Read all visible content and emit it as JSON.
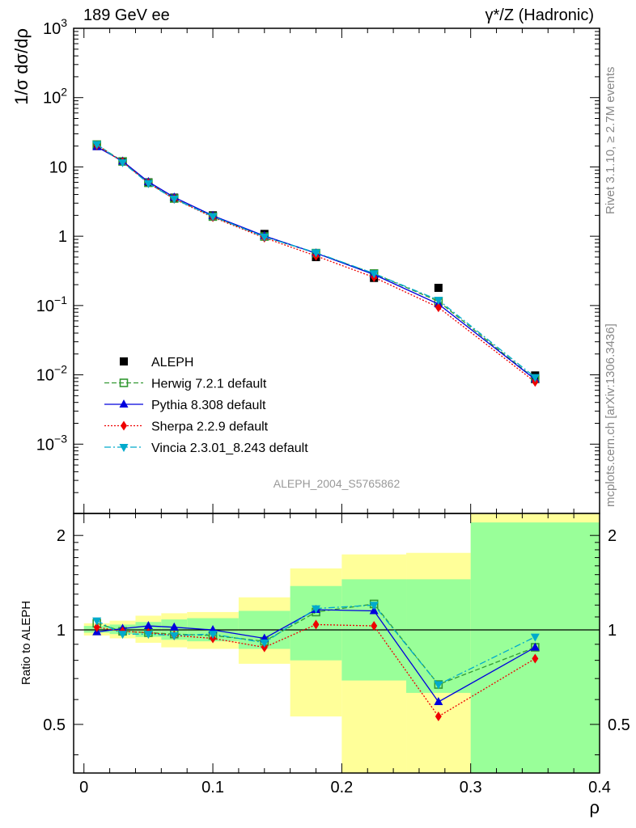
{
  "header": {
    "left": "189 GeV ee",
    "right": "γ*/Z (Hadronic)"
  },
  "side_labels": {
    "rivet": "Rivet 3.1.10, ≥ 2.7M events",
    "mcplots": "mcplots.cern.ch [arXiv:1306.3436]"
  },
  "watermark": "ALEPH_2004_S5765862",
  "chart_data": [
    {
      "id": "main",
      "type": "scatter",
      "ylabel": "1/σ dσ/dρ",
      "yscale": "log",
      "ylim": [
        0.0001,
        1000
      ],
      "xlim": [
        -0.008,
        0.4
      ],
      "ytick_labels": [
        {
          "value": 1000,
          "base": "10",
          "exp": "3"
        },
        {
          "value": 100,
          "base": "10",
          "exp": "2"
        },
        {
          "value": 10,
          "base": "10",
          "exp": ""
        },
        {
          "value": 1,
          "base": "1",
          "exp": ""
        },
        {
          "value": 0.1,
          "base": "10",
          "exp": "−1"
        },
        {
          "value": 0.01,
          "base": "10",
          "exp": "−2"
        },
        {
          "value": 0.001,
          "base": "10",
          "exp": "−3"
        }
      ],
      "x": [
        0.01,
        0.03,
        0.05,
        0.07,
        0.1,
        0.14,
        0.18,
        0.225,
        0.275,
        0.35
      ],
      "series": [
        {
          "name": "ALEPH",
          "color": "#000000",
          "marker": "square-filled",
          "line": "none",
          "values": [
            20,
            12,
            6,
            3.6,
            2.0,
            1.08,
            0.5,
            0.25,
            0.18,
            0.0098
          ]
        },
        {
          "name": "Herwig 7.2.1 default",
          "color": "#339933",
          "marker": "square-open",
          "line": "dashed",
          "values": [
            21,
            12,
            5.9,
            3.5,
            1.92,
            0.99,
            0.57,
            0.29,
            0.115,
            0.0087
          ]
        },
        {
          "name": "Pythia 8.308 default",
          "color": "#0000dd",
          "marker": "triangle-up",
          "line": "solid",
          "values": [
            19.5,
            12.1,
            6.1,
            3.65,
            1.98,
            1.01,
            0.57,
            0.28,
            0.105,
            0.0086
          ]
        },
        {
          "name": "Sherpa 2.2.9 default",
          "color": "#ee0000",
          "marker": "diamond",
          "line": "dotted",
          "values": [
            20.5,
            11.8,
            5.85,
            3.45,
            1.88,
            0.95,
            0.52,
            0.255,
            0.094,
            0.0079
          ]
        },
        {
          "name": "Vincia 2.3.01_8.243 default",
          "color": "#00aacc",
          "marker": "triangle-down",
          "line": "dashdot",
          "values": [
            21.2,
            11.6,
            5.8,
            3.45,
            1.93,
            0.98,
            0.58,
            0.29,
            0.12,
            0.0092
          ]
        }
      ]
    },
    {
      "id": "ratio",
      "type": "line",
      "ylabel": "Ratio to ALEPH",
      "yscale": "log",
      "ylim": [
        0.35,
        2.35
      ],
      "yticks": [
        0.5,
        1,
        2
      ],
      "xlabel": "ρ",
      "xticks": [
        0,
        0.1,
        0.2,
        0.3,
        0.4
      ],
      "xlim": [
        -0.008,
        0.4
      ],
      "bin_edges": [
        0,
        0.02,
        0.04,
        0.06,
        0.08,
        0.12,
        0.16,
        0.2,
        0.25,
        0.3,
        0.4
      ],
      "band_inner": [
        [
          0.98,
          1.03
        ],
        [
          0.97,
          1.04
        ],
        [
          0.95,
          1.06
        ],
        [
          0.93,
          1.08
        ],
        [
          0.92,
          1.09
        ],
        [
          0.87,
          1.15
        ],
        [
          0.8,
          1.38
        ],
        [
          0.69,
          1.45
        ],
        [
          0.63,
          1.45
        ],
        [
          0.35,
          2.2
        ]
      ],
      "band_outer": [
        [
          0.96,
          1.05
        ],
        [
          0.94,
          1.07
        ],
        [
          0.91,
          1.11
        ],
        [
          0.88,
          1.13
        ],
        [
          0.87,
          1.14
        ],
        [
          0.78,
          1.27
        ],
        [
          0.53,
          1.57
        ],
        [
          0.35,
          1.74
        ],
        [
          0.35,
          1.76
        ],
        [
          0.35,
          2.35
        ]
      ],
      "colors": {
        "inner": "#99ff99",
        "outer": "#ffff99"
      },
      "x": [
        0.01,
        0.03,
        0.05,
        0.07,
        0.1,
        0.14,
        0.18,
        0.225,
        0.275,
        0.35
      ],
      "series": [
        {
          "name": "Herwig 7.2.1 default",
          "color": "#339933",
          "marker": "square-open",
          "line": "dashed",
          "values": [
            1.05,
            0.99,
            0.98,
            0.97,
            0.96,
            0.92,
            1.14,
            1.21,
            0.67,
            0.88
          ]
        },
        {
          "name": "Pythia 8.308 default",
          "color": "#0000dd",
          "marker": "triangle-up",
          "line": "solid",
          "values": [
            0.985,
            1.01,
            1.03,
            1.02,
            1.0,
            0.94,
            1.16,
            1.15,
            0.59,
            0.88
          ]
        },
        {
          "name": "Sherpa 2.2.9 default",
          "color": "#ee0000",
          "marker": "diamond",
          "line": "dotted",
          "values": [
            1.02,
            0.99,
            0.98,
            0.96,
            0.94,
            0.88,
            1.04,
            1.03,
            0.53,
            0.81
          ]
        },
        {
          "name": "Vincia 2.3.01_8.243 default",
          "color": "#00aacc",
          "marker": "triangle-down",
          "line": "dashdot",
          "values": [
            1.07,
            0.97,
            0.97,
            0.96,
            0.97,
            0.91,
            1.17,
            1.2,
            0.67,
            0.95
          ]
        }
      ]
    }
  ]
}
